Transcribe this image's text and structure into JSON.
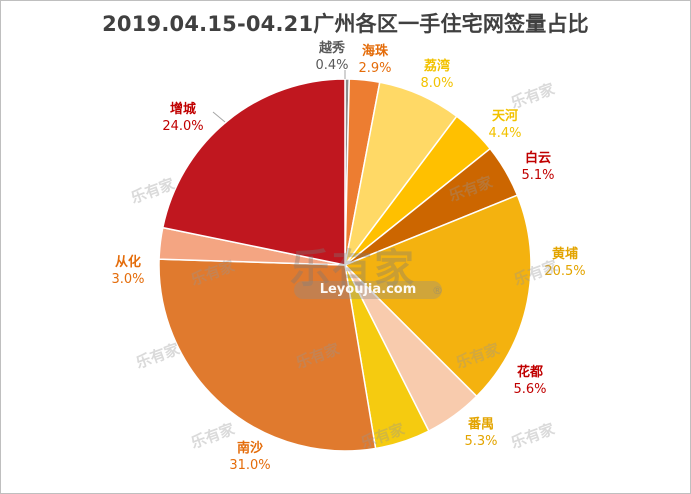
{
  "chart_data": {
    "type": "pie",
    "title": "2019.04.15-04.21广州各区一手住宅网签量占比",
    "slices": [
      {
        "label": "越秀",
        "value": 0.4,
        "pct": "0.4%",
        "color": "#8c8c8c",
        "text_color": "#595959"
      },
      {
        "label": "海珠",
        "value": 2.9,
        "pct": "2.9%",
        "color": "#ed7d31",
        "text_color": "#e46c0a"
      },
      {
        "label": "荔湾",
        "value": 8.0,
        "pct": "8.0%",
        "color": "#ffd966",
        "text_color": "#f2c200"
      },
      {
        "label": "天河",
        "value": 4.4,
        "pct": "4.4%",
        "color": "#ffc000",
        "text_color": "#f2c200"
      },
      {
        "label": "白云",
        "value": 5.1,
        "pct": "5.1%",
        "color": "#cc6600",
        "text_color": "#c00000"
      },
      {
        "label": "黄埔",
        "value": 20.5,
        "pct": "20.5%",
        "color": "#f4b20f",
        "text_color": "#e3a400"
      },
      {
        "label": "花都",
        "value": 5.6,
        "pct": "5.6%",
        "color": "#f8cbad",
        "text_color": "#c00000"
      },
      {
        "label": "番禺",
        "value": 5.3,
        "pct": "5.3%",
        "color": "#f5cb10",
        "text_color": "#e3a400"
      },
      {
        "label": "南沙",
        "value": 31.0,
        "pct": "31.0%",
        "color": "#e07a2e",
        "text_color": "#e46c0a"
      },
      {
        "label": "从化",
        "value": 3.0,
        "pct": "3.0%",
        "color": "#f4a582",
        "text_color": "#e46c0a"
      },
      {
        "label": "增城",
        "value": 24.0,
        "pct": "24.0%",
        "color": "#c0171f",
        "text_color": "#c00000"
      }
    ]
  },
  "watermark": {
    "brand": "乐有家",
    "url": "Leyoujia.com",
    "reg": "®"
  }
}
